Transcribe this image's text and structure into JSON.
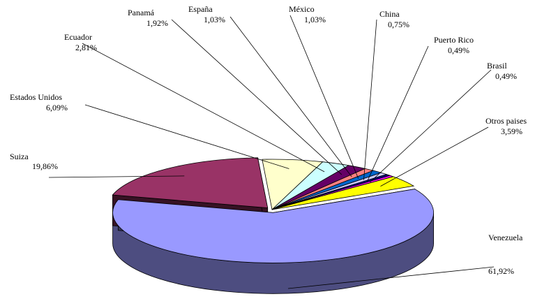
{
  "chart_data": {
    "type": "pie",
    "title": "",
    "slices": [
      {
        "label": "Venezuela",
        "value_text": "61,92%",
        "value": 61.92,
        "color": "#9999ff"
      },
      {
        "label": "Suiza",
        "value_text": "19,86%",
        "value": 19.86,
        "color": "#993366"
      },
      {
        "label": "Estados Unidos",
        "value_text": "6,09%",
        "value": 6.09,
        "color": "#ffffcc"
      },
      {
        "label": "Ecuador",
        "value_text": "2,81%",
        "value": 2.81,
        "color": "#ccffff"
      },
      {
        "label": "Panamá",
        "value_text": "1,92%",
        "value": 1.92,
        "color": "#660066"
      },
      {
        "label": "España",
        "value_text": "1,03%",
        "value": 1.03,
        "color": "#ff8080"
      },
      {
        "label": "México",
        "value_text": "1,03%",
        "value": 1.03,
        "color": "#0066cc"
      },
      {
        "label": "China",
        "value_text": "0,75%",
        "value": 0.75,
        "color": "#ccccff"
      },
      {
        "label": "Puerto Rico",
        "value_text": "0,49%",
        "value": 0.49,
        "color": "#000080"
      },
      {
        "label": "Brasil",
        "value_text": "0,49%",
        "value": 0.49,
        "color": "#ff00ff"
      },
      {
        "label": "Otros paises",
        "value_text": "3,59%",
        "value": 3.59,
        "color": "#ffff00"
      }
    ]
  }
}
